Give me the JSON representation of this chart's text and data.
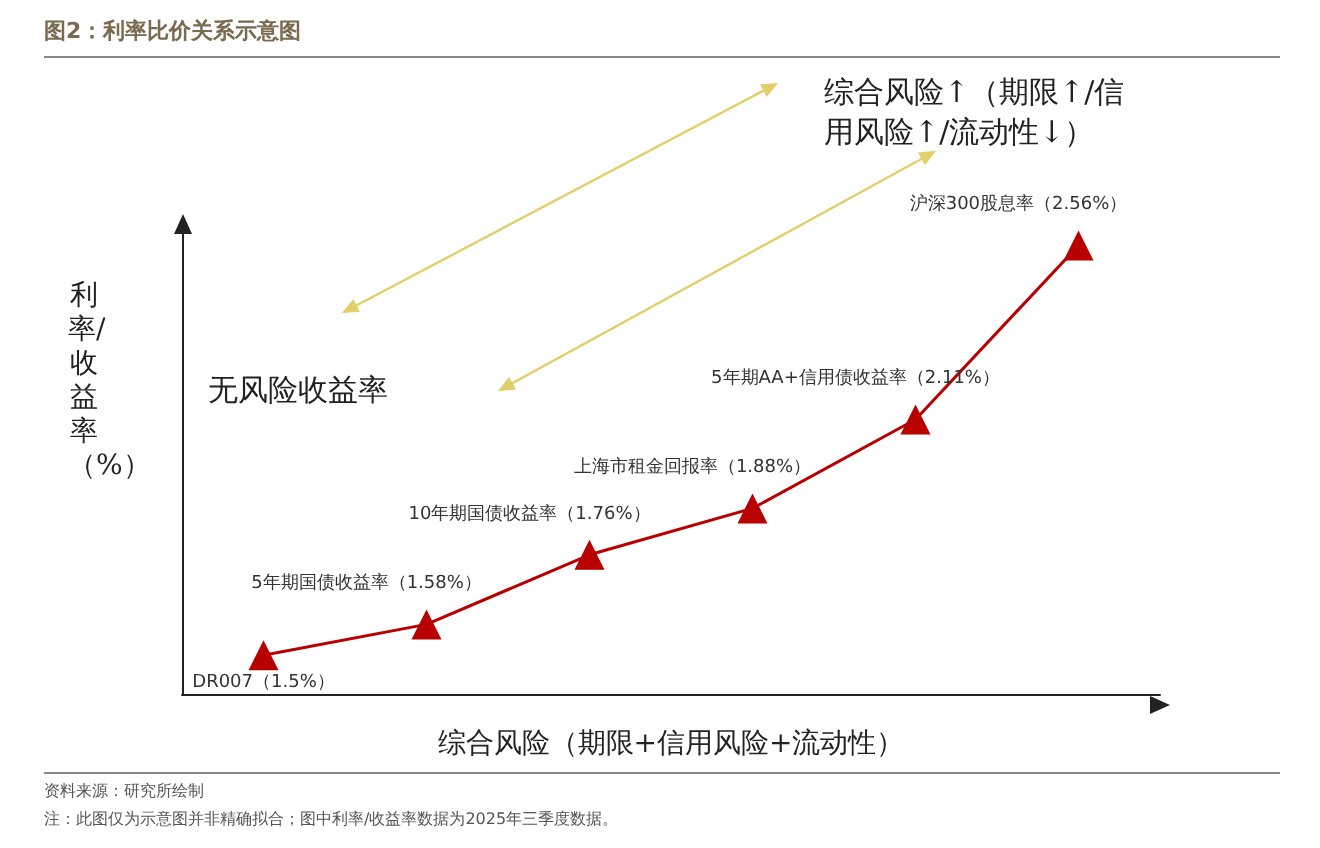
{
  "chart_data": {
    "type": "line",
    "title": "图2：利率比价关系示意图",
    "xlabel": "综合风险（期限+信用风险+流动性）",
    "ylabel": "利率/收益率（%）",
    "categories": [
      null,
      null,
      null,
      null,
      null,
      null
    ],
    "series": [
      {
        "color": "#b80000",
        "values": [
          1.5,
          1.58,
          1.76,
          1.88,
          2.11,
          2.56
        ],
        "value_labels": [
          "DR007（1.5%）",
          "5年期国债收益率（1.58%）",
          "10年期国债收益率（1.76%）",
          "上海市租金回报率（1.88%）",
          "5年期AA+信用债收益率（2.11%）",
          "沪深300股息率（2.56%）"
        ]
      }
    ],
    "annotations": [
      "综合风险↑（期限↑/信用风险↑/流动性↓）",
      "无风险收益率",
      "资料来源：研究所绘制",
      "注：此图仅为示意图并非精确拟合；图中利率/收益率数据为2025年三季度数据。"
    ],
    "marker": "triangle",
    "line_style": "solid",
    "tick_labels": false,
    "grid": false
  }
}
